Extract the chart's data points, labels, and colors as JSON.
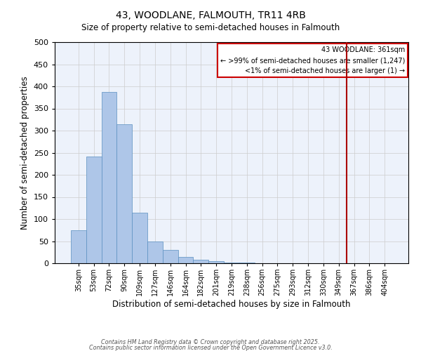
{
  "title": "43, WOODLANE, FALMOUTH, TR11 4RB",
  "subtitle": "Size of property relative to semi-detached houses in Falmouth",
  "xlabel": "Distribution of semi-detached houses by size in Falmouth",
  "ylabel": "Number of semi-detached properties",
  "bin_labels": [
    "35sqm",
    "53sqm",
    "72sqm",
    "90sqm",
    "109sqm",
    "127sqm",
    "146sqm",
    "164sqm",
    "182sqm",
    "201sqm",
    "219sqm",
    "238sqm",
    "256sqm",
    "275sqm",
    "293sqm",
    "312sqm",
    "330sqm",
    "349sqm",
    "367sqm",
    "386sqm",
    "404sqm"
  ],
  "bar_heights": [
    75,
    242,
    388,
    315,
    115,
    50,
    30,
    15,
    8,
    5,
    2,
    1,
    0,
    0,
    0,
    0,
    0,
    0,
    0,
    0,
    0
  ],
  "bar_color": "#aec6e8",
  "bar_edge_color": "#5a8fc0",
  "grid_color": "#cccccc",
  "background_color": "#ffffff",
  "plot_bg_color": "#edf2fb",
  "red_line_color": "#aa0000",
  "red_line_index": 18,
  "legend_title": "43 WOODLANE: 361sqm",
  "legend_line1": "← >99% of semi-detached houses are smaller (1,247)",
  "legend_line2": "<1% of semi-detached houses are larger (1) →",
  "legend_box_color": "#cc0000",
  "ylim": [
    0,
    500
  ],
  "yticks": [
    0,
    50,
    100,
    150,
    200,
    250,
    300,
    350,
    400,
    450,
    500
  ],
  "footnote1": "Contains HM Land Registry data © Crown copyright and database right 2025.",
  "footnote2": "Contains public sector information licensed under the Open Government Licence v3.0."
}
